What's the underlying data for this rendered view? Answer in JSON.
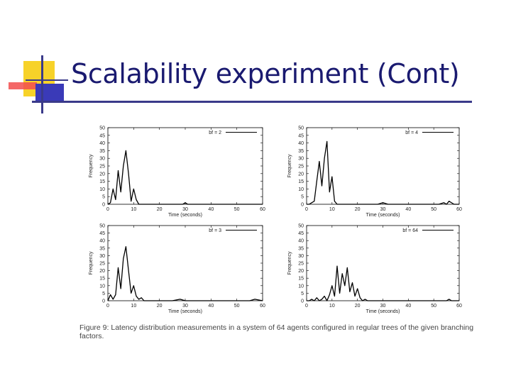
{
  "slide": {
    "title": "Scalability experiment (Cont)",
    "caption": "Figure 9: Latency distribution measurements in a system of 64 agents configured in regular trees of the given branching factors.",
    "accent_colors": {
      "yellow": "#f7d229",
      "red": "#f24d4d",
      "blue": "#3a3ab8",
      "dark": "#3a3a8a"
    }
  },
  "chart_data": [
    {
      "type": "line",
      "legend": "bf = 2",
      "xlabel": "Time (seconds)",
      "ylabel": "Frequency",
      "xlim": [
        0,
        60
      ],
      "ylim": [
        0,
        50
      ],
      "xticks": [
        0,
        10,
        20,
        30,
        40,
        50,
        60
      ],
      "yticks": [
        0,
        5,
        10,
        15,
        20,
        25,
        30,
        35,
        40,
        45,
        50
      ],
      "x": [
        0,
        1,
        2,
        3,
        4,
        5,
        6,
        7,
        8,
        9,
        10,
        11,
        12,
        13,
        14,
        15,
        20,
        25,
        29,
        30,
        31,
        35,
        40,
        45,
        48,
        50,
        55,
        60
      ],
      "y": [
        0,
        1,
        10,
        3,
        22,
        8,
        25,
        35,
        20,
        2,
        10,
        3,
        0,
        0,
        0,
        0,
        0,
        0,
        0,
        1,
        0,
        0,
        0,
        0,
        0,
        0,
        0,
        0
      ]
    },
    {
      "type": "line",
      "legend": "bf = 4",
      "xlabel": "Time (seconds)",
      "ylabel": "Frequency",
      "xlim": [
        0,
        60
      ],
      "ylim": [
        0,
        50
      ],
      "xticks": [
        0,
        10,
        20,
        30,
        40,
        50,
        60
      ],
      "yticks": [
        0,
        5,
        10,
        15,
        20,
        25,
        30,
        35,
        40,
        45,
        50
      ],
      "x": [
        0,
        1,
        2,
        3,
        4,
        5,
        6,
        7,
        8,
        9,
        10,
        11,
        12,
        15,
        20,
        25,
        28,
        30,
        32,
        35,
        40,
        45,
        50,
        52,
        54,
        55,
        56,
        58,
        60
      ],
      "y": [
        0,
        0,
        1,
        2,
        15,
        28,
        12,
        30,
        41,
        8,
        18,
        2,
        0,
        0,
        0,
        0,
        0,
        1,
        0,
        0,
        0,
        0,
        0,
        0,
        1,
        0,
        2,
        0,
        0
      ]
    },
    {
      "type": "line",
      "legend": "bf = 3",
      "xlabel": "Time (seconds)",
      "ylabel": "Frequency",
      "xlim": [
        0,
        60
      ],
      "ylim": [
        0,
        50
      ],
      "xticks": [
        0,
        10,
        20,
        30,
        40,
        50,
        60
      ],
      "yticks": [
        0,
        5,
        10,
        15,
        20,
        25,
        30,
        35,
        40,
        45,
        50
      ],
      "x": [
        0,
        1,
        2,
        3,
        4,
        5,
        6,
        7,
        8,
        9,
        10,
        11,
        12,
        13,
        14,
        15,
        20,
        25,
        28,
        30,
        32,
        35,
        40,
        45,
        50,
        55,
        57,
        60
      ],
      "y": [
        0,
        4,
        1,
        4,
        22,
        8,
        28,
        36,
        20,
        5,
        10,
        3,
        1,
        2,
        0,
        0,
        0,
        0,
        1,
        0,
        0,
        0,
        0,
        0,
        0,
        0,
        1,
        0
      ]
    },
    {
      "type": "line",
      "legend": "bf = 64",
      "xlabel": "Time (seconds)",
      "ylabel": "Frequency",
      "xlim": [
        0,
        60
      ],
      "ylim": [
        0,
        50
      ],
      "xticks": [
        0,
        10,
        20,
        30,
        40,
        50,
        60
      ],
      "yticks": [
        0,
        5,
        10,
        15,
        20,
        25,
        30,
        35,
        40,
        45,
        50
      ],
      "x": [
        0,
        1,
        2,
        3,
        4,
        5,
        6,
        7,
        8,
        9,
        10,
        11,
        12,
        13,
        14,
        15,
        16,
        17,
        18,
        19,
        20,
        21,
        22,
        23,
        24,
        25,
        28,
        30,
        35,
        40,
        45,
        50,
        55,
        56,
        57,
        60
      ],
      "y": [
        0,
        0,
        1,
        0,
        2,
        0,
        1,
        3,
        0,
        4,
        10,
        3,
        23,
        5,
        18,
        10,
        22,
        6,
        12,
        3,
        8,
        2,
        0,
        1,
        0,
        0,
        0,
        0,
        0,
        0,
        0,
        0,
        0,
        1,
        0,
        0
      ]
    }
  ]
}
